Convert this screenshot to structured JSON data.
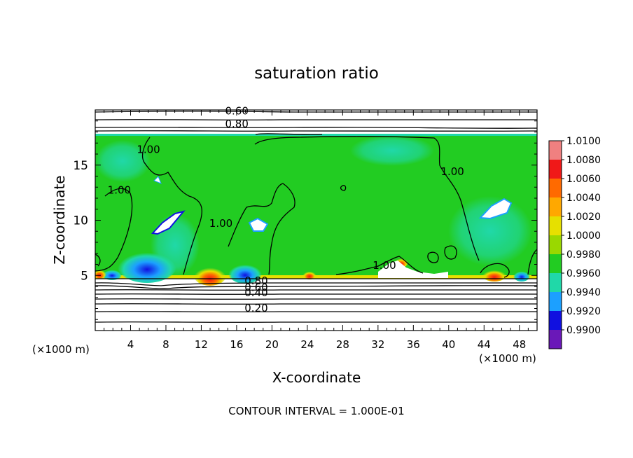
{
  "chart_data": {
    "type": "heatmap",
    "title": "saturation ratio",
    "xlabel": "X-coordinate",
    "ylabel": "Z-coordinate",
    "x_unit_left": "(×1000 m)",
    "x_unit_right": "(×1000 m)",
    "xlim": [
      0,
      50
    ],
    "ylim": [
      0,
      20
    ],
    "x_ticks": [
      4,
      8,
      12,
      16,
      20,
      24,
      28,
      32,
      36,
      40,
      44,
      48
    ],
    "y_ticks": [
      5,
      10,
      15
    ],
    "colorbar": {
      "levels": [
        "1.0100",
        "1.0080",
        "1.0060",
        "1.0040",
        "1.0020",
        "1.0000",
        "0.9980",
        "0.9960",
        "0.9940",
        "0.9920",
        "0.9900"
      ],
      "colors": [
        "#f08080",
        "#f01818",
        "#ff6a00",
        "#ffa800",
        "#e6e000",
        "#9ad800",
        "#22cc22",
        "#20d8a8",
        "#1ca0ff",
        "#1010e0",
        "#6a18b8"
      ]
    },
    "contour_labels": [
      {
        "text": "0.60",
        "x": 14.7,
        "z": 19.6
      },
      {
        "text": "0.80",
        "x": 14.7,
        "z": 18.4
      },
      {
        "text": "1.00",
        "x": 4.7,
        "z": 16.1
      },
      {
        "text": "1.00",
        "x": 1.4,
        "z": 12.4
      },
      {
        "text": "1.00",
        "x": 12.9,
        "z": 9.4
      },
      {
        "text": "1.00",
        "x": 31.4,
        "z": 5.6
      },
      {
        "text": "1.00",
        "x": 39.1,
        "z": 14.1
      },
      {
        "text": "0.80",
        "x": 16.9,
        "z": 4.2
      },
      {
        "text": "0.60",
        "x": 16.9,
        "z": 3.6
      },
      {
        "text": "0.40",
        "x": 16.9,
        "z": 3.1
      },
      {
        "text": "0.20",
        "x": 16.9,
        "z": 1.7
      }
    ],
    "footer": "CONTOUR INTERVAL = 1.000E-01"
  }
}
